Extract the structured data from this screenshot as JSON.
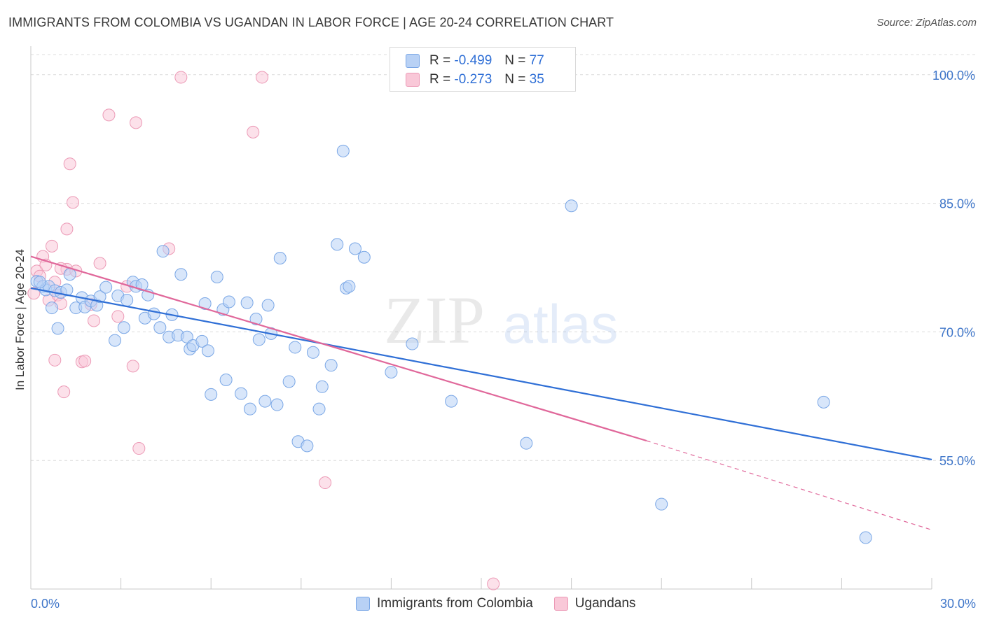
{
  "title": "IMMIGRANTS FROM COLOMBIA VS UGANDAN IN LABOR FORCE | AGE 20-24 CORRELATION CHART",
  "source": "Source: ZipAtlas.com",
  "watermark": {
    "zip": "ZIP",
    "atlas": "atlas"
  },
  "legend": {
    "r_label": "R =",
    "n_label": "N =",
    "series1": {
      "r": "-0.499",
      "n": "77"
    },
    "series2": {
      "r": "-0.273",
      "n": "35"
    }
  },
  "colors": {
    "blue_fill": "#b8d1f5",
    "blue_stroke": "#7aa7e6",
    "blue_line": "#2f6fd6",
    "pink_fill": "#f9c8d8",
    "pink_stroke": "#ec9ab6",
    "pink_line": "#e0679a",
    "tick_label": "#3f76c9",
    "grid": "#dcdcdc"
  },
  "chart_data": {
    "type": "scatter",
    "title": "IMMIGRANTS FROM COLOMBIA VS UGANDAN IN LABOR FORCE | AGE 20-24 CORRELATION CHART",
    "xlabel": "",
    "ylabel": "In Labor Force | Age 20-24",
    "xlim": [
      0,
      30
    ],
    "ylim": [
      40,
      103
    ],
    "x_tick_labels": [
      "0.0%",
      "30.0%"
    ],
    "y_ticks": [
      55,
      70,
      85,
      100
    ],
    "y_tick_labels": [
      "55.0%",
      "70.0%",
      "85.0%",
      "100.0%"
    ],
    "grid": true,
    "legend_position": "bottom",
    "series": [
      {
        "name": "Immigrants from Colombia",
        "color": "#7aa7e6",
        "trend": {
          "x0": 0,
          "y0": 75.1,
          "x1": 30,
          "y1": 55.1
        },
        "points": [
          [
            0.2,
            75.9
          ],
          [
            0.4,
            75.3
          ],
          [
            0.5,
            74.9
          ],
          [
            0.6,
            75.3
          ],
          [
            0.7,
            72.8
          ],
          [
            0.8,
            74.8
          ],
          [
            0.9,
            70.4
          ],
          [
            1.0,
            74.6
          ],
          [
            1.3,
            76.7
          ],
          [
            1.5,
            72.8
          ],
          [
            1.7,
            74.0
          ],
          [
            1.8,
            72.9
          ],
          [
            2.0,
            73.6
          ],
          [
            2.2,
            73.1
          ],
          [
            2.3,
            74.1
          ],
          [
            2.5,
            75.2
          ],
          [
            2.8,
            69.0
          ],
          [
            2.9,
            74.2
          ],
          [
            3.1,
            70.5
          ],
          [
            3.2,
            73.7
          ],
          [
            3.4,
            75.8
          ],
          [
            3.5,
            75.3
          ],
          [
            3.7,
            75.5
          ],
          [
            3.8,
            71.6
          ],
          [
            3.9,
            74.3
          ],
          [
            4.1,
            72.1
          ],
          [
            4.3,
            70.5
          ],
          [
            4.4,
            79.4
          ],
          [
            4.6,
            69.4
          ],
          [
            4.7,
            72.0
          ],
          [
            4.9,
            69.6
          ],
          [
            5.0,
            76.7
          ],
          [
            5.2,
            69.4
          ],
          [
            5.3,
            68.0
          ],
          [
            5.4,
            68.4
          ],
          [
            5.7,
            68.9
          ],
          [
            5.8,
            73.3
          ],
          [
            5.9,
            67.8
          ],
          [
            6.0,
            62.7
          ],
          [
            6.2,
            76.4
          ],
          [
            6.4,
            72.6
          ],
          [
            6.5,
            64.4
          ],
          [
            6.6,
            73.5
          ],
          [
            7.0,
            62.8
          ],
          [
            7.2,
            73.4
          ],
          [
            7.3,
            61.0
          ],
          [
            7.5,
            71.5
          ],
          [
            7.6,
            69.1
          ],
          [
            7.8,
            61.9
          ],
          [
            7.9,
            73.1
          ],
          [
            8.0,
            69.8
          ],
          [
            8.2,
            61.5
          ],
          [
            8.3,
            78.6
          ],
          [
            8.6,
            64.2
          ],
          [
            8.8,
            68.2
          ],
          [
            8.9,
            57.2
          ],
          [
            9.2,
            56.7
          ],
          [
            9.4,
            67.6
          ],
          [
            9.6,
            61.0
          ],
          [
            9.7,
            63.6
          ],
          [
            10.0,
            66.1
          ],
          [
            10.2,
            80.2
          ],
          [
            10.4,
            91.1
          ],
          [
            10.5,
            75.1
          ],
          [
            10.6,
            75.3
          ],
          [
            10.8,
            79.7
          ],
          [
            11.1,
            78.7
          ],
          [
            12.0,
            65.3
          ],
          [
            12.7,
            68.6
          ],
          [
            14.0,
            61.9
          ],
          [
            16.5,
            57.0
          ],
          [
            18.0,
            84.7
          ],
          [
            21.0,
            49.9
          ],
          [
            26.4,
            61.8
          ],
          [
            27.8,
            46.0
          ],
          [
            0.3,
            75.8
          ],
          [
            1.2,
            74.9
          ]
        ]
      },
      {
        "name": "Ugandans",
        "color": "#ec9ab6",
        "trend": {
          "x0": 0,
          "y0": 78.8,
          "x1": 20.5,
          "y1": 57.3,
          "x_end": 30,
          "y_end": 46.9
        },
        "points": [
          [
            0.1,
            74.5
          ],
          [
            0.2,
            77.1
          ],
          [
            0.4,
            78.8
          ],
          [
            0.5,
            77.8
          ],
          [
            0.6,
            73.7
          ],
          [
            0.7,
            80.0
          ],
          [
            0.8,
            75.8
          ],
          [
            0.8,
            66.7
          ],
          [
            0.9,
            74.3
          ],
          [
            1.0,
            73.3
          ],
          [
            1.1,
            63.0
          ],
          [
            1.2,
            77.3
          ],
          [
            1.2,
            82.0
          ],
          [
            1.3,
            89.6
          ],
          [
            1.4,
            85.1
          ],
          [
            1.5,
            77.1
          ],
          [
            1.7,
            66.5
          ],
          [
            1.8,
            66.6
          ],
          [
            2.0,
            73.2
          ],
          [
            2.1,
            71.3
          ],
          [
            2.3,
            78.0
          ],
          [
            2.6,
            95.3
          ],
          [
            2.9,
            71.8
          ],
          [
            3.2,
            75.3
          ],
          [
            3.4,
            66.0
          ],
          [
            3.5,
            94.4
          ],
          [
            3.6,
            56.4
          ],
          [
            4.6,
            79.7
          ],
          [
            5.0,
            99.7
          ],
          [
            7.4,
            93.3
          ],
          [
            7.7,
            99.7
          ],
          [
            9.8,
            52.4
          ],
          [
            15.4,
            40.6
          ],
          [
            0.3,
            76.5
          ],
          [
            1.0,
            77.4
          ]
        ]
      }
    ]
  },
  "bottom_legend": [
    {
      "label": "Immigrants from Colombia"
    },
    {
      "label": "Ugandans"
    }
  ]
}
